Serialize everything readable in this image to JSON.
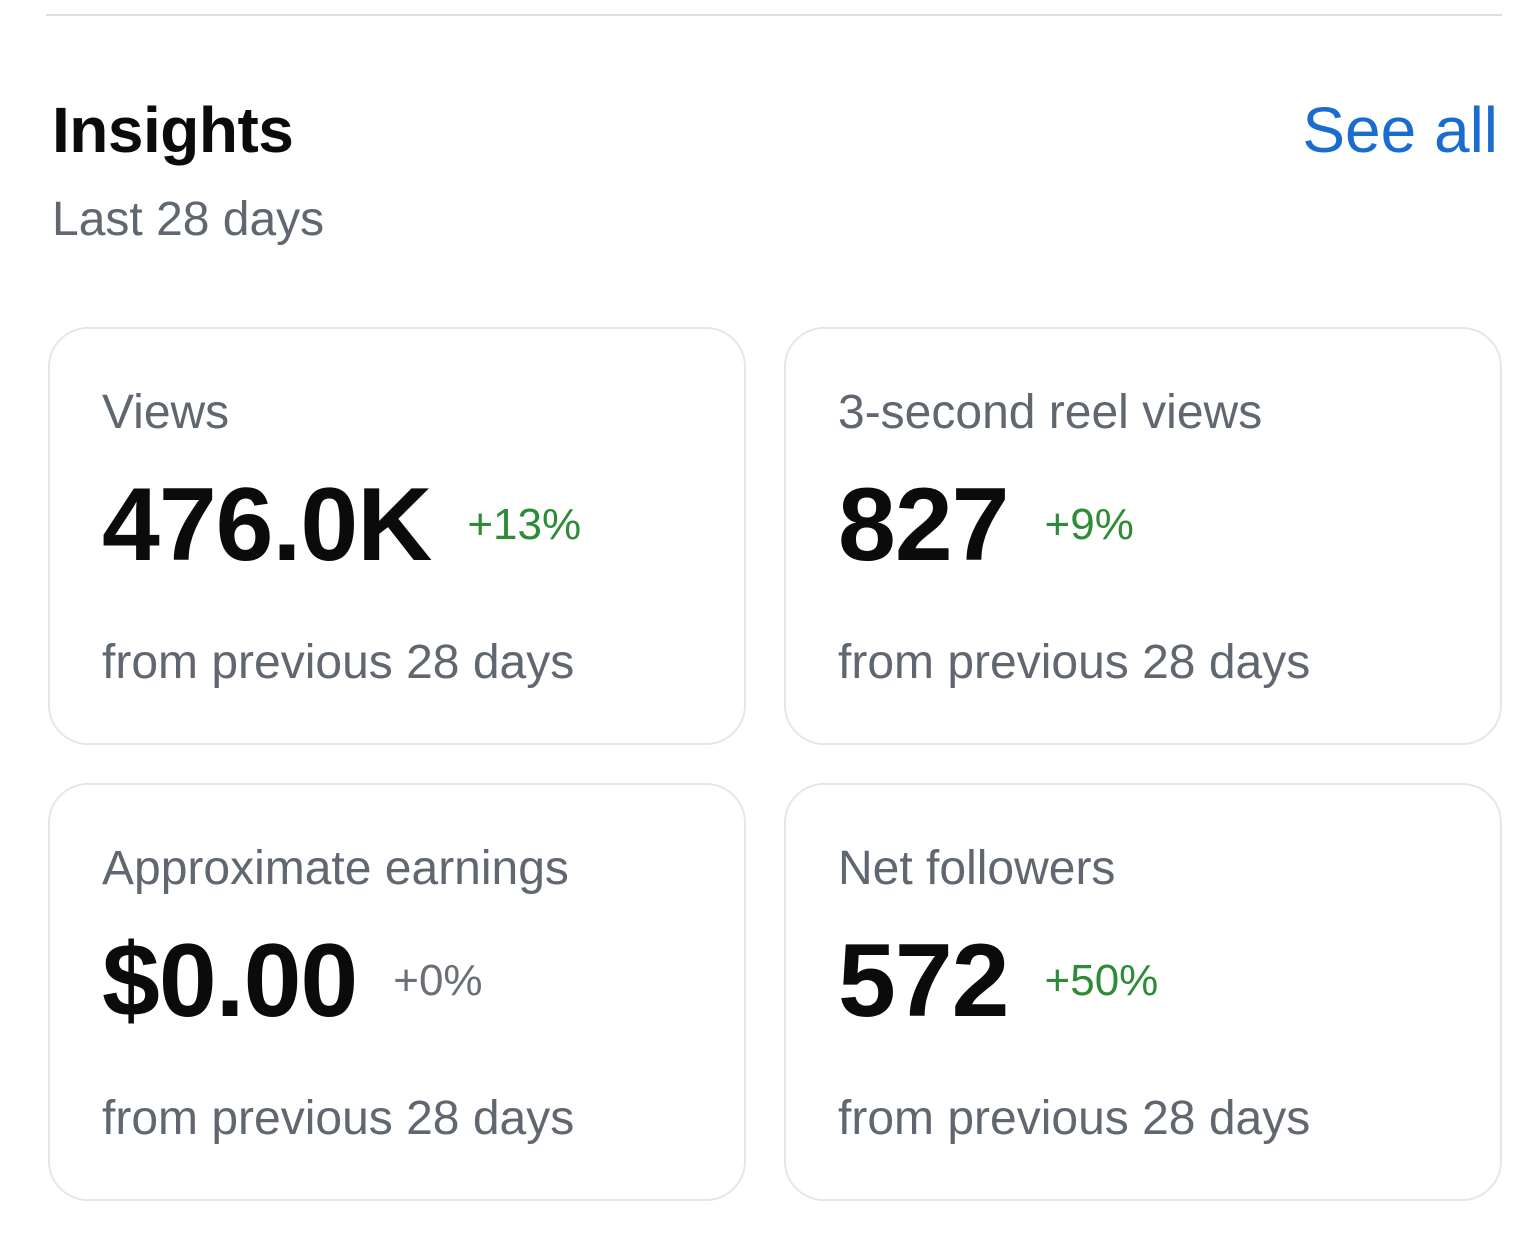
{
  "header": {
    "title": "Insights",
    "subtitle": "Last 28 days",
    "see_all_label": "See all"
  },
  "colors": {
    "accent_link": "#1a6ccf",
    "positive_change": "#2e8b37",
    "neutral_change": "#6b7077",
    "secondary_text": "#606770"
  },
  "cards": [
    {
      "label": "Views",
      "value": "476.0K",
      "change": "+13%",
      "footnote": "from previous 28 days"
    },
    {
      "label": "3-second reel views",
      "value": "827",
      "change": "+9%",
      "footnote": "from previous 28 days"
    },
    {
      "label": "Approximate earnings",
      "value": "$0.00",
      "change": "+0%",
      "footnote": "from previous 28 days"
    },
    {
      "label": "Net followers",
      "value": "572",
      "change": "+50%",
      "footnote": "from previous 28 days"
    }
  ]
}
